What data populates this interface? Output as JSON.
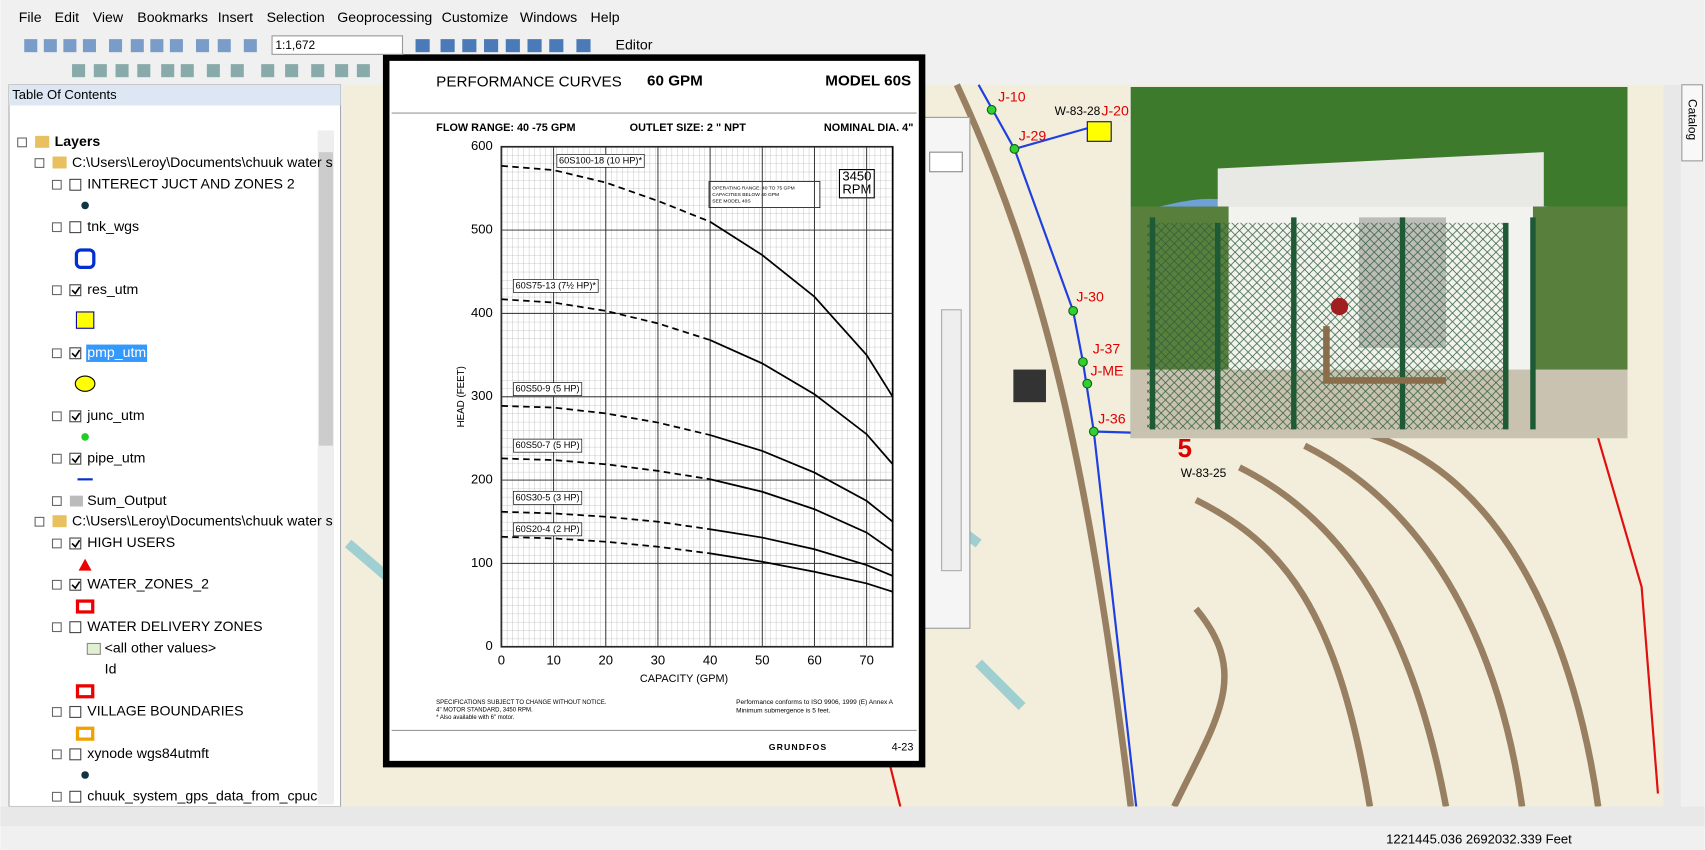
{
  "menu": [
    "File",
    "Edit",
    "View",
    "Bookmarks",
    "Insert",
    "Selection",
    "Geoprocessing",
    "Customize",
    "Windows",
    "Help"
  ],
  "toolbar": {
    "scale": "1:1,672",
    "editor": "Editor"
  },
  "toc": {
    "title": "Table Of Contents",
    "items": [
      {
        "label": "Layers"
      },
      {
        "label": "C:\\Users\\Leroy\\Documents\\chuuk water s"
      },
      {
        "label": "INTERECT JUCT AND ZONES 2",
        "checked": false
      },
      {
        "label": "tnk_wgs",
        "checked": false
      },
      {
        "label": "res_utm",
        "checked": true
      },
      {
        "label": "pmp_utm",
        "checked": true
      },
      {
        "label": "junc_utm",
        "checked": true
      },
      {
        "label": "pipe_utm",
        "checked": true
      },
      {
        "label": "Sum_Output"
      },
      {
        "label": "C:\\Users\\Leroy\\Documents\\chuuk water s"
      },
      {
        "label": "HIGH USERS",
        "checked": true
      },
      {
        "label": "WATER_ZONES_2",
        "checked": true
      },
      {
        "label": "WATER DELIVERY ZONES",
        "checked": false
      },
      {
        "label": "<all other values>"
      },
      {
        "label": "Id"
      },
      {
        "label": "VILLAGE BOUNDARIES",
        "checked": false
      },
      {
        "label": "xynode wgs84utmft",
        "checked": false
      },
      {
        "label": "chuuk_system_gps_data_from_cpuc",
        "checked": false
      }
    ]
  },
  "map_labels": [
    "J-10",
    "W-83-28",
    "J-20",
    "J-29",
    "J-30",
    "J-37",
    "J-ME",
    "J-36",
    "5",
    "W-83-25"
  ],
  "catalog_tab": "Catalog",
  "status": "1221445.036  2692032.339 Feet",
  "performance_chart": {
    "title": "PERFORMANCE CURVES",
    "flow": "60 GPM",
    "model": "MODEL 60S",
    "flow_range": "FLOW RANGE: 40 -75 GPM",
    "outlet_size": "OUTLET SIZE: 2 \" NPT",
    "nominal_dia": "NOMINAL DIA. 4\"",
    "rpm_value": "3450",
    "rpm_unit": "RPM",
    "operating_note": [
      "OPERATING RANGE: 40 TO 75 GPM",
      "CAPACITIES BELOW 40 GPM",
      "SEE MODEL 40S"
    ],
    "ylabel": "HEAD (FEET)",
    "xlabel": "CAPACITY (GPM)",
    "xlim": [
      0,
      75
    ],
    "ylim": [
      0,
      600
    ],
    "xticks": [
      0,
      10,
      20,
      30,
      40,
      50,
      60,
      70
    ],
    "yticks": [
      0,
      100,
      200,
      300,
      400,
      500,
      600
    ],
    "x": [
      0,
      10,
      20,
      30,
      40,
      50,
      60,
      70,
      75
    ],
    "series": [
      {
        "name": "60S100-18 (10 HP)*",
        "values": [
          577,
          572,
          557,
          535,
          510,
          470,
          420,
          350,
          300
        ]
      },
      {
        "name": "60S75-13 (7½ HP)*",
        "values": [
          417,
          413,
          403,
          388,
          368,
          340,
          303,
          255,
          219
        ]
      },
      {
        "name": "60S50-9 (5 HP)",
        "values": [
          289,
          287,
          280,
          269,
          254,
          235,
          209,
          175,
          150
        ]
      },
      {
        "name": "60S50-7 (5 HP)",
        "values": [
          226,
          224,
          219,
          211,
          201,
          186,
          165,
          137,
          115
        ]
      },
      {
        "name": "60S30-5 (3 HP)",
        "values": [
          162,
          160,
          156,
          150,
          141,
          131,
          117,
          98,
          85
        ]
      },
      {
        "name": "60S20-4 (2 HP)",
        "values": [
          132,
          130,
          126,
          120,
          112,
          102,
          90,
          76,
          66
        ]
      }
    ],
    "footnote_left": [
      "SPECIFICATIONS SUBJECT TO CHANGE WITHOUT NOTICE.",
      "4\" MOTOR STANDARD, 3450 RPM.",
      "* Also available with 6\" motor."
    ],
    "footnote_right": [
      "Performance conforms to ISO 9906, 1999 (E) Annex A",
      "Minimum submergence is 5 feet."
    ],
    "brand": "GRUNDFOS",
    "page": "4-23"
  }
}
